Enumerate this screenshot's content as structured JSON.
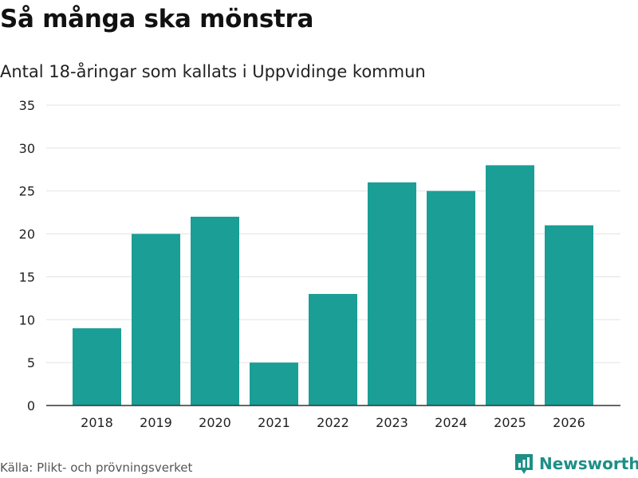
{
  "header": {
    "title": "Så många ska mönstra",
    "subtitle": "Antal 18-åringar som kallats i Uppvidinge kommun"
  },
  "footer": {
    "source": "Källa: Plikt- och prövningsverket",
    "brand": "Newsworthy",
    "brand_icon": "bar-chart-badge-icon"
  },
  "colors": {
    "bar": "#1a9e96",
    "grid": "#e3e3e3",
    "axis": "#333333",
    "brand": "#1d8f87"
  },
  "chart_data": {
    "type": "bar",
    "title": "Så många ska mönstra",
    "subtitle": "Antal 18-åringar som kallats i Uppvidinge kommun",
    "categories": [
      "2018",
      "2019",
      "2020",
      "2021",
      "2022",
      "2023",
      "2024",
      "2025",
      "2026"
    ],
    "values": [
      9,
      20,
      22,
      5,
      13,
      26,
      25,
      28,
      21
    ],
    "ylim": [
      0,
      35
    ],
    "yticks": [
      0,
      5,
      10,
      15,
      20,
      25,
      30,
      35
    ],
    "xlabel": "",
    "ylabel": "",
    "grid": true,
    "legend": "none"
  }
}
